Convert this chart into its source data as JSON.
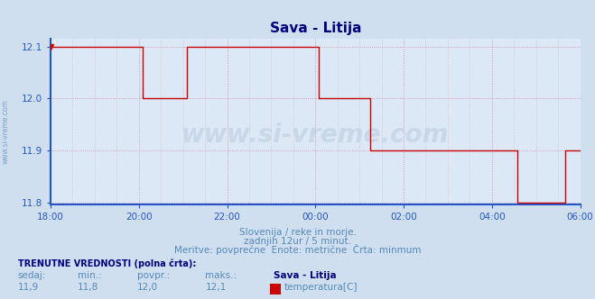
{
  "title": "Sava - Litija",
  "bg_color": "#d0dff0",
  "plot_bg_color": "#dce8f5",
  "grid_color_dot": "#b0c0d8",
  "line_color": "#cc0000",
  "axis_color": "#2255cc",
  "text_color": "#5588bb",
  "title_color": "#000080",
  "yticks": [
    11.8,
    11.9,
    12.0,
    12.1
  ],
  "xlabel_times": [
    "18:00",
    "20:00",
    "22:00",
    "00:00",
    "02:00",
    "04:00",
    "06:00"
  ],
  "watermark": "www.si-vreme.com",
  "subtitle1": "Slovenija / reke in morje.",
  "subtitle2": "zadnjih 12ur / 5 minut.",
  "subtitle3": "Meritve: povprečne  Enote: metrične  Črta: minmum",
  "footer_bold": "TRENUTNE VREDNOSTI (polna črta):",
  "footer_labels": [
    "sedaj:",
    "min.:",
    "povpr.:",
    "maks.:",
    "Sava - Litija"
  ],
  "footer_values": [
    "11,9",
    "11,8",
    "12,0",
    "12,1"
  ],
  "legend_label": "temperatura[C]",
  "legend_color": "#cc0000"
}
